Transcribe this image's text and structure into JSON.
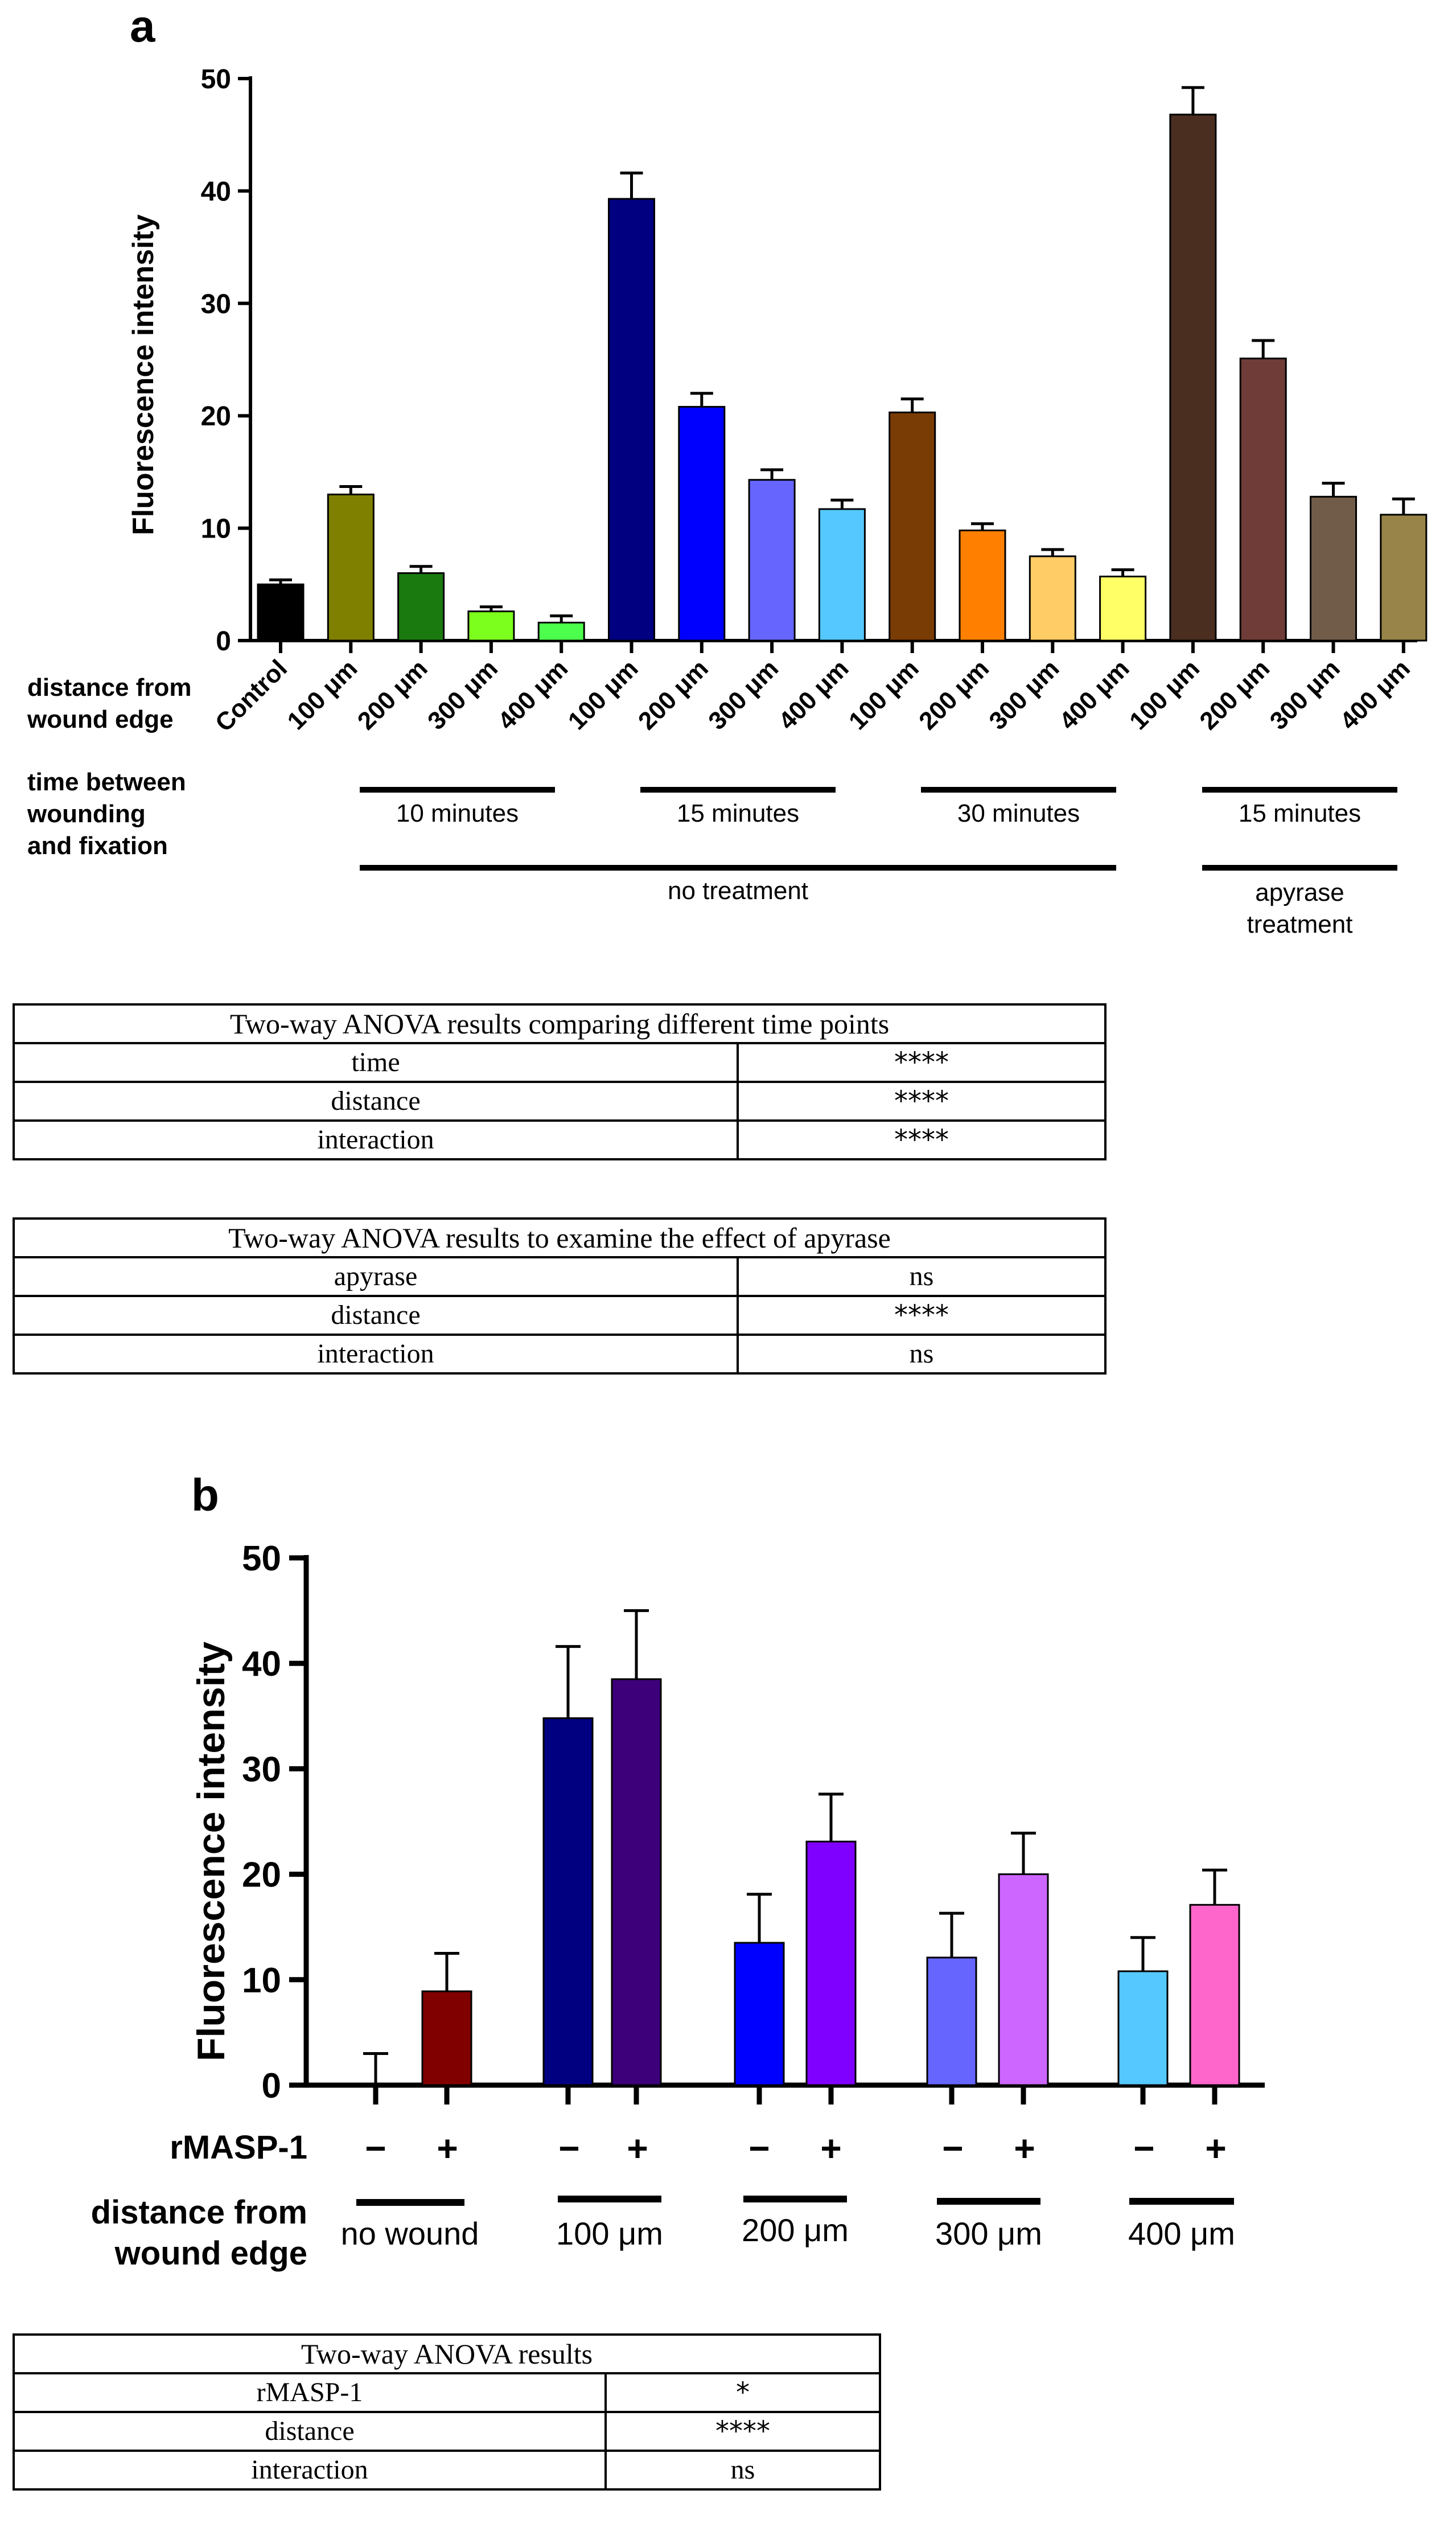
{
  "panel_a": {
    "label": "a",
    "row_label_distance": "distance from wound edge",
    "row_label_distance_lines": [
      "distance from",
      "wound edge"
    ],
    "row_label_time_lines": [
      "time between",
      "wounding",
      "and fixation"
    ],
    "time_groups": [
      "10 minutes",
      "15 minutes",
      "30 minutes",
      "15 minutes"
    ],
    "treatment_groups": [
      "no treatment",
      "apyrase treatment"
    ],
    "treatment_apyrase_lines": [
      "apyrase",
      "treatment"
    ]
  },
  "panel_b": {
    "label": "b",
    "row_label_rmasp": "rMASP-1",
    "row_label_distance_lines": [
      "distance from",
      "wound edge"
    ],
    "distance_groups": [
      "no wound",
      "100 μm",
      "200 μm",
      "300 μm",
      "400 μm"
    ],
    "signs": [
      "−",
      "+",
      "−",
      "+",
      "−",
      "+",
      "−",
      "+",
      "−",
      "+"
    ]
  },
  "table1": {
    "title": "Two-way ANOVA results comparing different time points",
    "rows": [
      {
        "factor": "time",
        "sig": "****"
      },
      {
        "factor": "distance",
        "sig": "****"
      },
      {
        "factor": "interaction",
        "sig": "****"
      }
    ]
  },
  "table2": {
    "title": "Two-way ANOVA results to examine the effect of apyrase",
    "rows": [
      {
        "factor": "apyrase",
        "sig": "ns"
      },
      {
        "factor": "distance",
        "sig": "****"
      },
      {
        "factor": "interaction",
        "sig": "ns"
      }
    ]
  },
  "table3": {
    "title": "Two-way ANOVA results",
    "rows": [
      {
        "factor": "rMASP-1",
        "sig": "*"
      },
      {
        "factor": "distance",
        "sig": "****"
      },
      {
        "factor": "interaction",
        "sig": "ns"
      }
    ]
  },
  "chart_data": [
    {
      "type": "bar",
      "title": "",
      "ylabel": "Fluorescence intensity",
      "xlabel": "distance from wound edge",
      "ylim": [
        0,
        50
      ],
      "yticks": [
        0,
        10,
        20,
        30,
        40,
        50
      ],
      "categories": [
        "Control",
        "100 μm",
        "200 μm",
        "300 μm",
        "400 μm",
        "100 μm",
        "200 μm",
        "300 μm",
        "400 μm",
        "100 μm",
        "200 μm",
        "300 μm",
        "400 μm",
        "100 μm",
        "200 μm",
        "300 μm",
        "400 μm"
      ],
      "values": [
        5.0,
        13.0,
        6.0,
        2.6,
        1.6,
        39.3,
        20.8,
        14.3,
        11.7,
        20.3,
        9.8,
        7.5,
        5.7,
        46.8,
        25.1,
        12.8,
        11.2
      ],
      "errors": [
        0.4,
        0.7,
        0.6,
        0.4,
        0.6,
        2.3,
        1.2,
        0.9,
        0.8,
        1.2,
        0.6,
        0.6,
        0.6,
        2.4,
        1.6,
        1.2,
        1.4
      ],
      "colors": [
        "#000000",
        "#808000",
        "#1a7a10",
        "#7dff1e",
        "#4dff4d",
        "#000080",
        "#0000ff",
        "#6666ff",
        "#55c8ff",
        "#7a3c05",
        "#ff8000",
        "#ffcc66",
        "#ffff66",
        "#4a2e20",
        "#703c38",
        "#705c48",
        "#988448"
      ],
      "groups": [
        {
          "time": "10 minutes",
          "treatment": "no treatment"
        },
        {
          "time": "15 minutes",
          "treatment": "no treatment"
        },
        {
          "time": "30 minutes",
          "treatment": "no treatment"
        },
        {
          "time": "15 minutes",
          "treatment": "apyrase treatment"
        }
      ]
    },
    {
      "type": "bar",
      "title": "",
      "ylabel": "Fluorescence intensity",
      "xlabel": "distance from wound edge",
      "ylim": [
        0,
        50
      ],
      "yticks": [
        0,
        10,
        20,
        30,
        40,
        50
      ],
      "categories": [
        "no wound",
        "100 μm",
        "200 μm",
        "300 μm",
        "400 μm"
      ],
      "series": [
        {
          "name": "rMASP-1 −",
          "values": [
            0.0,
            34.8,
            13.5,
            12.1,
            10.8
          ],
          "errors": [
            3.0,
            6.8,
            4.6,
            4.2,
            3.2
          ]
        },
        {
          "name": "rMASP-1 +",
          "values": [
            8.9,
            38.5,
            23.1,
            20.0,
            17.1
          ],
          "errors": [
            3.6,
            6.5,
            4.5,
            3.9,
            3.3
          ]
        }
      ],
      "colors": [
        "#800000",
        "#000080",
        "#3d007a",
        "#0000ff",
        "#8000ff",
        "#6666ff",
        "#cc66ff",
        "#55c8ff",
        "#ff66cc"
      ]
    }
  ]
}
